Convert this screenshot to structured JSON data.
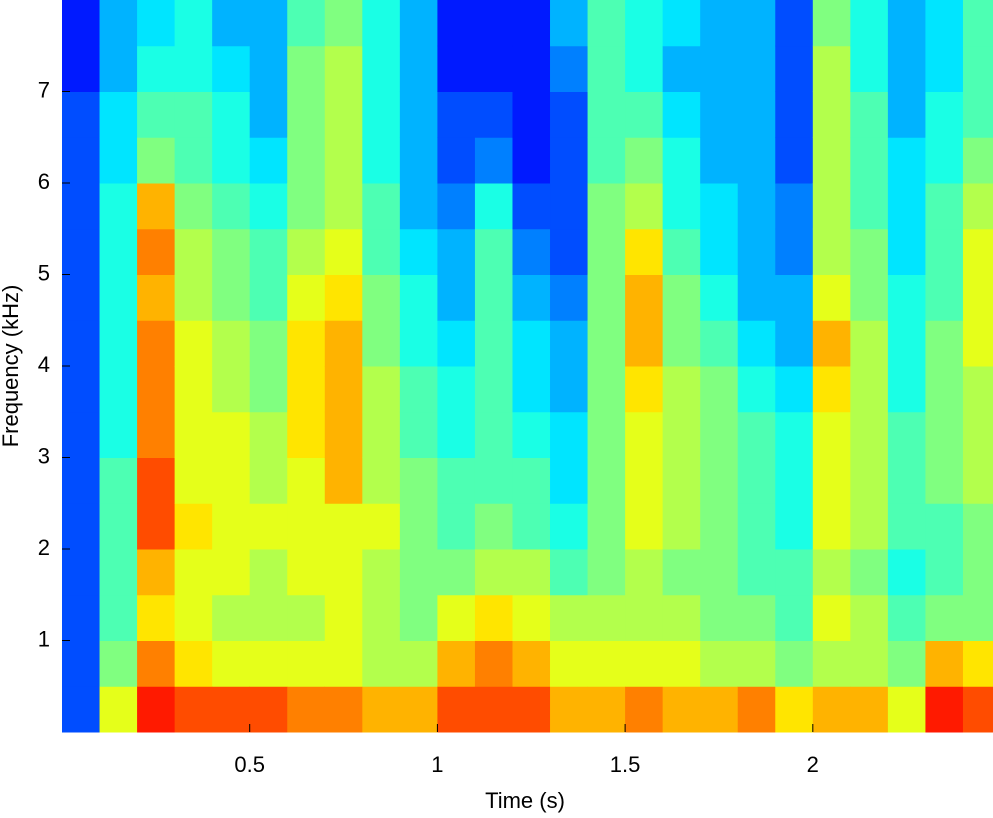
{
  "chart_data": {
    "type": "spectrogram",
    "colormap": "jet",
    "x_label": "Time (s)",
    "y_label": "Frequency (kHz)",
    "xlim": [
      0,
      2.48
    ],
    "ylim": [
      0,
      8
    ],
    "xticks": [
      0.5,
      1,
      1.5,
      2
    ],
    "yticks": [
      1,
      2,
      3,
      4,
      5,
      6,
      7
    ],
    "xbins": [
      0,
      0.1,
      0.2,
      0.3,
      0.4,
      0.5,
      0.6,
      0.7,
      0.8,
      0.9,
      1.0,
      1.1,
      1.2,
      1.3,
      1.4,
      1.5,
      1.6,
      1.7,
      1.8,
      1.9,
      2.0,
      2.1,
      2.2,
      2.3,
      2.4,
      2.48
    ],
    "ybins": [
      0,
      0.5,
      1,
      1.5,
      2,
      2.5,
      3,
      3.5,
      4,
      4.5,
      5,
      5.5,
      6,
      6.5,
      7,
      7.5,
      8
    ],
    "values": [
      [
        0.2,
        0.2,
        0.2,
        0.2,
        0.2,
        0.2,
        0.2,
        0.2,
        0.2,
        0.2,
        0.2,
        0.2,
        0.2,
        0.2,
        0.15,
        0.15
      ],
      [
        0.6,
        0.5,
        0.45,
        0.45,
        0.45,
        0.45,
        0.4,
        0.4,
        0.4,
        0.4,
        0.4,
        0.4,
        0.35,
        0.35,
        0.3,
        0.3
      ],
      [
        0.85,
        0.75,
        0.65,
        0.7,
        0.8,
        0.8,
        0.75,
        0.75,
        0.75,
        0.7,
        0.75,
        0.7,
        0.5,
        0.45,
        0.4,
        0.35
      ],
      [
        0.8,
        0.65,
        0.6,
        0.6,
        0.65,
        0.6,
        0.6,
        0.6,
        0.6,
        0.55,
        0.55,
        0.5,
        0.45,
        0.45,
        0.4,
        0.4
      ],
      [
        0.8,
        0.6,
        0.55,
        0.6,
        0.6,
        0.6,
        0.6,
        0.55,
        0.55,
        0.5,
        0.5,
        0.45,
        0.4,
        0.4,
        0.35,
        0.3
      ],
      [
        0.8,
        0.6,
        0.55,
        0.55,
        0.6,
        0.55,
        0.55,
        0.5,
        0.5,
        0.45,
        0.45,
        0.4,
        0.35,
        0.3,
        0.3,
        0.3
      ],
      [
        0.75,
        0.6,
        0.55,
        0.6,
        0.6,
        0.6,
        0.65,
        0.65,
        0.65,
        0.6,
        0.55,
        0.5,
        0.5,
        0.5,
        0.5,
        0.45
      ],
      [
        0.75,
        0.6,
        0.6,
        0.6,
        0.6,
        0.7,
        0.7,
        0.7,
        0.7,
        0.65,
        0.6,
        0.55,
        0.55,
        0.55,
        0.55,
        0.5
      ],
      [
        0.7,
        0.55,
        0.55,
        0.55,
        0.6,
        0.55,
        0.55,
        0.55,
        0.5,
        0.5,
        0.45,
        0.45,
        0.4,
        0.4,
        0.4,
        0.4
      ],
      [
        0.7,
        0.55,
        0.5,
        0.5,
        0.5,
        0.5,
        0.45,
        0.45,
        0.4,
        0.4,
        0.35,
        0.3,
        0.3,
        0.3,
        0.3,
        0.3
      ],
      [
        0.8,
        0.7,
        0.6,
        0.5,
        0.45,
        0.45,
        0.4,
        0.4,
        0.35,
        0.3,
        0.3,
        0.25,
        0.2,
        0.2,
        0.15,
        0.15
      ],
      [
        0.8,
        0.75,
        0.65,
        0.55,
        0.5,
        0.45,
        0.45,
        0.45,
        0.45,
        0.45,
        0.45,
        0.4,
        0.25,
        0.2,
        0.15,
        0.15
      ],
      [
        0.8,
        0.7,
        0.6,
        0.55,
        0.45,
        0.45,
        0.4,
        0.35,
        0.35,
        0.3,
        0.25,
        0.2,
        0.15,
        0.15,
        0.15,
        0.15
      ],
      [
        0.7,
        0.6,
        0.55,
        0.45,
        0.4,
        0.35,
        0.35,
        0.3,
        0.3,
        0.25,
        0.2,
        0.2,
        0.2,
        0.2,
        0.25,
        0.3
      ],
      [
        0.7,
        0.6,
        0.55,
        0.5,
        0.5,
        0.5,
        0.5,
        0.5,
        0.5,
        0.5,
        0.5,
        0.5,
        0.45,
        0.45,
        0.45,
        0.45
      ],
      [
        0.75,
        0.6,
        0.55,
        0.55,
        0.6,
        0.6,
        0.6,
        0.65,
        0.7,
        0.7,
        0.65,
        0.55,
        0.5,
        0.45,
        0.4,
        0.4
      ],
      [
        0.7,
        0.6,
        0.55,
        0.5,
        0.55,
        0.55,
        0.55,
        0.55,
        0.5,
        0.5,
        0.45,
        0.4,
        0.4,
        0.35,
        0.3,
        0.35
      ],
      [
        0.7,
        0.55,
        0.5,
        0.5,
        0.5,
        0.5,
        0.5,
        0.5,
        0.45,
        0.4,
        0.35,
        0.35,
        0.3,
        0.3,
        0.3,
        0.3
      ],
      [
        0.75,
        0.55,
        0.5,
        0.45,
        0.45,
        0.45,
        0.45,
        0.4,
        0.35,
        0.3,
        0.3,
        0.3,
        0.3,
        0.3,
        0.3,
        0.3
      ],
      [
        0.65,
        0.5,
        0.45,
        0.45,
        0.4,
        0.4,
        0.4,
        0.35,
        0.3,
        0.3,
        0.25,
        0.25,
        0.2,
        0.2,
        0.2,
        0.2
      ],
      [
        0.7,
        0.55,
        0.6,
        0.55,
        0.6,
        0.6,
        0.6,
        0.65,
        0.7,
        0.6,
        0.55,
        0.55,
        0.55,
        0.55,
        0.55,
        0.5
      ],
      [
        0.7,
        0.55,
        0.55,
        0.5,
        0.55,
        0.55,
        0.55,
        0.55,
        0.55,
        0.5,
        0.5,
        0.45,
        0.45,
        0.45,
        0.4,
        0.4
      ],
      [
        0.6,
        0.5,
        0.45,
        0.4,
        0.45,
        0.45,
        0.45,
        0.4,
        0.4,
        0.4,
        0.35,
        0.35,
        0.35,
        0.3,
        0.3,
        0.3
      ],
      [
        0.85,
        0.7,
        0.5,
        0.45,
        0.45,
        0.5,
        0.5,
        0.5,
        0.5,
        0.45,
        0.45,
        0.45,
        0.4,
        0.4,
        0.35,
        0.35
      ],
      [
        0.8,
        0.65,
        0.5,
        0.5,
        0.5,
        0.55,
        0.55,
        0.55,
        0.6,
        0.6,
        0.6,
        0.55,
        0.5,
        0.45,
        0.45,
        0.45
      ]
    ]
  }
}
